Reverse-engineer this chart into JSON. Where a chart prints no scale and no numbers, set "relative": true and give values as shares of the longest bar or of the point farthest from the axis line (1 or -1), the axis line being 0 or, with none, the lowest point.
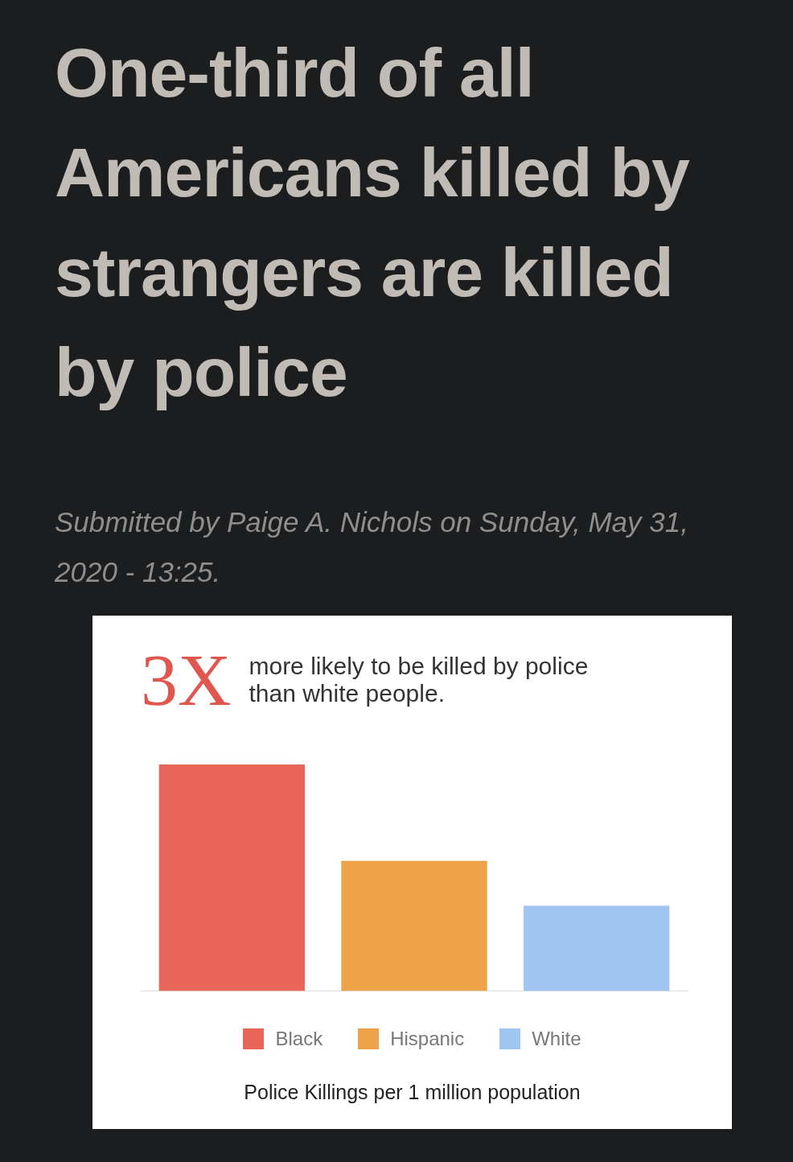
{
  "chart_data": {
    "type": "bar",
    "title": "One-third of all Americans killed by strangers are killed by police",
    "subtitle": "Submitted by Paige A. Nichols on Sunday, May 31, 2020 - 13:25.",
    "annotations": [
      "3X",
      "more likely to be killed by police than white people."
    ],
    "xlabel": "Police Killings per 1 million population",
    "categories": [
      null
    ],
    "relative": true,
    "series": [
      {
        "name": "Black",
        "color": "#e8675a",
        "values": [
          1
        ]
      },
      {
        "name": "Hispanic",
        "color": "#eea24a",
        "values": [
          0.575
        ]
      },
      {
        "name": "White",
        "color": "#9fc5f0",
        "values": [
          0.377
        ]
      }
    ],
    "legend": "bottom",
    "grid": false
  }
}
